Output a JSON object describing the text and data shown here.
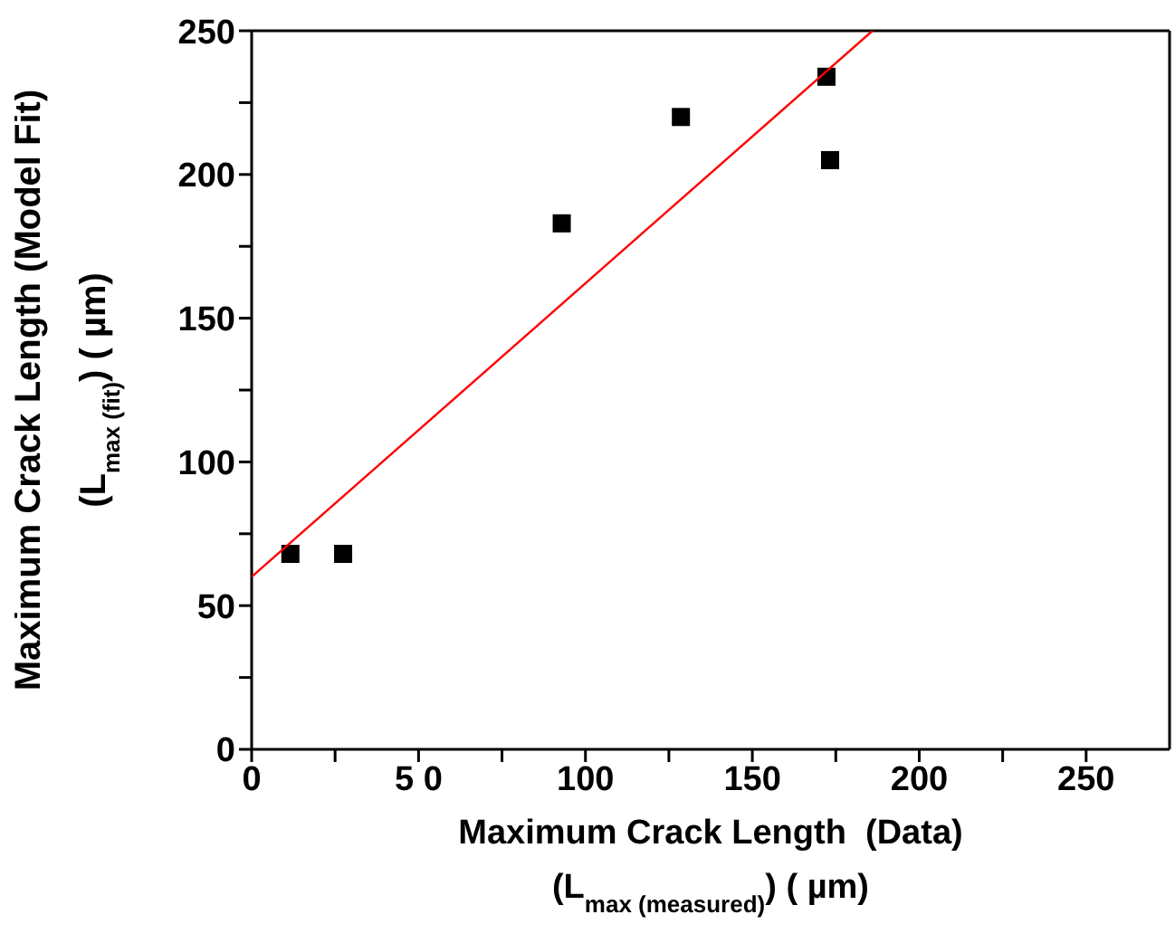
{
  "chart_data": {
    "type": "scatter",
    "xlabel": "Maximum Crack Length  (Data)\n(L$_{max (measured)}$) ( µm)",
    "ylabel": "Maximum Crack Length (Model Fit)\n(L$_{max (fit)}$) ( µm)",
    "series": [
      {
        "color": "#000000",
        "marker": "square",
        "x": [
          11.6,
          27.4,
          92.9,
          128.6,
          172.2,
          173.3
        ],
        "values": [
          68,
          68,
          183,
          220,
          234,
          205
        ]
      },
      {
        "type": "line",
        "color": "#ff0000",
        "marker": "none",
        "x": [
          0,
          186
        ],
        "values": [
          60,
          250
        ]
      }
    ],
    "xlim": [
      0,
      275
    ],
    "xticks": [
      0,
      {
        "value": 25,
        "label": null
      },
      {
        "value": 50,
        "label": "5 0"
      },
      {
        "value": 75,
        "label": null
      },
      100,
      {
        "value": 125,
        "label": null
      },
      150,
      {
        "value": 175,
        "label": null
      },
      200,
      {
        "value": 225,
        "label": null
      },
      250
    ],
    "ylim": [
      0,
      250
    ],
    "yticks": [
      0,
      {
        "value": 25,
        "label": null
      },
      50,
      {
        "value": 75,
        "label": null
      },
      100,
      {
        "value": 125,
        "label": null
      },
      150,
      {
        "value": 175,
        "label": null
      },
      200,
      {
        "value": 225,
        "label": null
      },
      250
    ]
  }
}
